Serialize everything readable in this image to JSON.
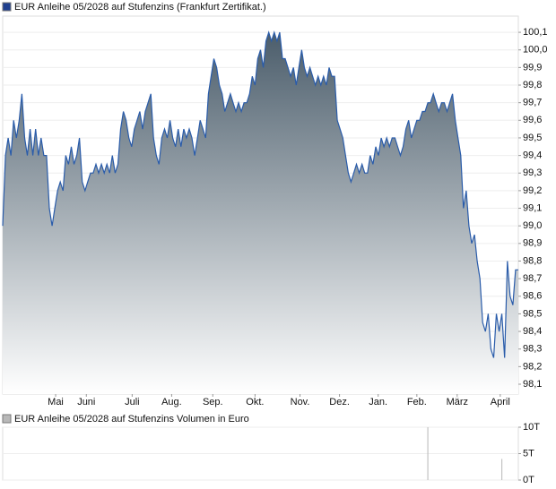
{
  "chart_data": [
    {
      "type": "area",
      "series": [
        {
          "name": "EUR Anleihe 05/2028 auf Stufenzins (Frankfurt Zertifikat.)",
          "color": "#2a5caa",
          "values": [
            99.0,
            99.4,
            99.5,
            99.4,
            99.6,
            99.5,
            99.6,
            99.75,
            99.5,
            99.4,
            99.55,
            99.4,
            99.55,
            99.4,
            99.5,
            99.4,
            99.4,
            99.1,
            99.0,
            99.1,
            99.2,
            99.25,
            99.2,
            99.4,
            99.35,
            99.45,
            99.35,
            99.4,
            99.5,
            99.25,
            99.2,
            99.25,
            99.3,
            99.3,
            99.35,
            99.3,
            99.35,
            99.3,
            99.35,
            99.3,
            99.4,
            99.3,
            99.35,
            99.55,
            99.65,
            99.6,
            99.5,
            99.45,
            99.55,
            99.6,
            99.65,
            99.55,
            99.65,
            99.7,
            99.75,
            99.5,
            99.4,
            99.35,
            99.5,
            99.55,
            99.5,
            99.6,
            99.5,
            99.45,
            99.55,
            99.45,
            99.55,
            99.5,
            99.55,
            99.5,
            99.4,
            99.5,
            99.6,
            99.55,
            99.5,
            99.75,
            99.85,
            99.95,
            99.9,
            99.8,
            99.75,
            99.65,
            99.7,
            99.75,
            99.7,
            99.65,
            99.7,
            99.65,
            99.7,
            99.7,
            99.75,
            99.85,
            99.8,
            99.95,
            100.0,
            99.9,
            100.05,
            100.1,
            100.05,
            100.1,
            100.05,
            100.1,
            99.95,
            99.95,
            99.9,
            99.85,
            99.9,
            99.8,
            99.9,
            100.0,
            99.9,
            99.85,
            99.9,
            99.85,
            99.8,
            99.85,
            99.8,
            99.85,
            99.8,
            99.9,
            99.85,
            99.85,
            99.6,
            99.55,
            99.5,
            99.4,
            99.3,
            99.25,
            99.3,
            99.35,
            99.3,
            99.35,
            99.3,
            99.3,
            99.4,
            99.35,
            99.45,
            99.4,
            99.5,
            99.45,
            99.5,
            99.45,
            99.5,
            99.5,
            99.45,
            99.4,
            99.45,
            99.55,
            99.6,
            99.5,
            99.55,
            99.6,
            99.6,
            99.65,
            99.65,
            99.7,
            99.7,
            99.75,
            99.7,
            99.65,
            99.7,
            99.7,
            99.65,
            99.7,
            99.75,
            99.6,
            99.5,
            99.4,
            99.1,
            99.2,
            99.0,
            98.9,
            98.95,
            98.8,
            98.7,
            98.45,
            98.4,
            98.5,
            98.3,
            98.25,
            98.5,
            98.4,
            98.5,
            98.25,
            98.8,
            98.6,
            98.55,
            98.75,
            98.75
          ]
        }
      ],
      "xlim": [
        0,
        188
      ],
      "xticks": [
        {
          "value": 19.3,
          "label": "Mai"
        },
        {
          "value": 30.5,
          "label": "Juni"
        },
        {
          "value": 47.2,
          "label": "Juli"
        },
        {
          "value": 61.6,
          "label": "Aug."
        },
        {
          "value": 76.6,
          "label": "Sep."
        },
        {
          "value": 92.0,
          "label": "Okt."
        },
        {
          "value": 108.4,
          "label": "Nov."
        },
        {
          "value": 122.8,
          "label": "Dez."
        },
        {
          "value": 136.9,
          "label": "Jan."
        },
        {
          "value": 151.0,
          "label": "Feb."
        },
        {
          "value": 165.7,
          "label": "März"
        },
        {
          "value": 181.4,
          "label": "April"
        }
      ],
      "ylim": [
        98.044,
        100.192
      ],
      "yticks": [
        {
          "value": 98.1,
          "label": "98,1"
        },
        {
          "value": 98.2,
          "label": "98,2"
        },
        {
          "value": 98.3,
          "label": "98,3"
        },
        {
          "value": 98.4,
          "label": "98,4"
        },
        {
          "value": 98.5,
          "label": "98,5"
        },
        {
          "value": 98.6,
          "label": "98,6"
        },
        {
          "value": 98.7,
          "label": "98,7"
        },
        {
          "value": 98.8,
          "label": "98,8"
        },
        {
          "value": 98.9,
          "label": "98,9"
        },
        {
          "value": 99.0,
          "label": "99,0"
        },
        {
          "value": 99.1,
          "label": "99,1"
        },
        {
          "value": 99.2,
          "label": "99,2"
        },
        {
          "value": 99.3,
          "label": "99,3"
        },
        {
          "value": 99.4,
          "label": "99,4"
        },
        {
          "value": 99.5,
          "label": "99,5"
        },
        {
          "value": 99.6,
          "label": "99,6"
        },
        {
          "value": 99.7,
          "label": "99,7"
        },
        {
          "value": 99.8,
          "label": "99,8"
        },
        {
          "value": 99.9,
          "label": "99,9"
        },
        {
          "value": 100.0,
          "label": "100,0"
        },
        {
          "value": 100.1,
          "label": "100,1"
        }
      ]
    },
    {
      "type": "bar",
      "series": [
        {
          "name": "EUR Anleihe 05/2028 auf Stufenzins Volumen in Euro",
          "color": "#b8b8b8",
          "x": [
            155,
            182
          ],
          "values": [
            10000,
            4000
          ]
        }
      ],
      "xlim": [
        0,
        188
      ],
      "ylim": [
        0,
        10000
      ],
      "yticks": [
        {
          "value": 0,
          "label": "0T"
        },
        {
          "value": 5000,
          "label": "5T"
        },
        {
          "value": 10000,
          "label": "10T"
        }
      ]
    }
  ]
}
